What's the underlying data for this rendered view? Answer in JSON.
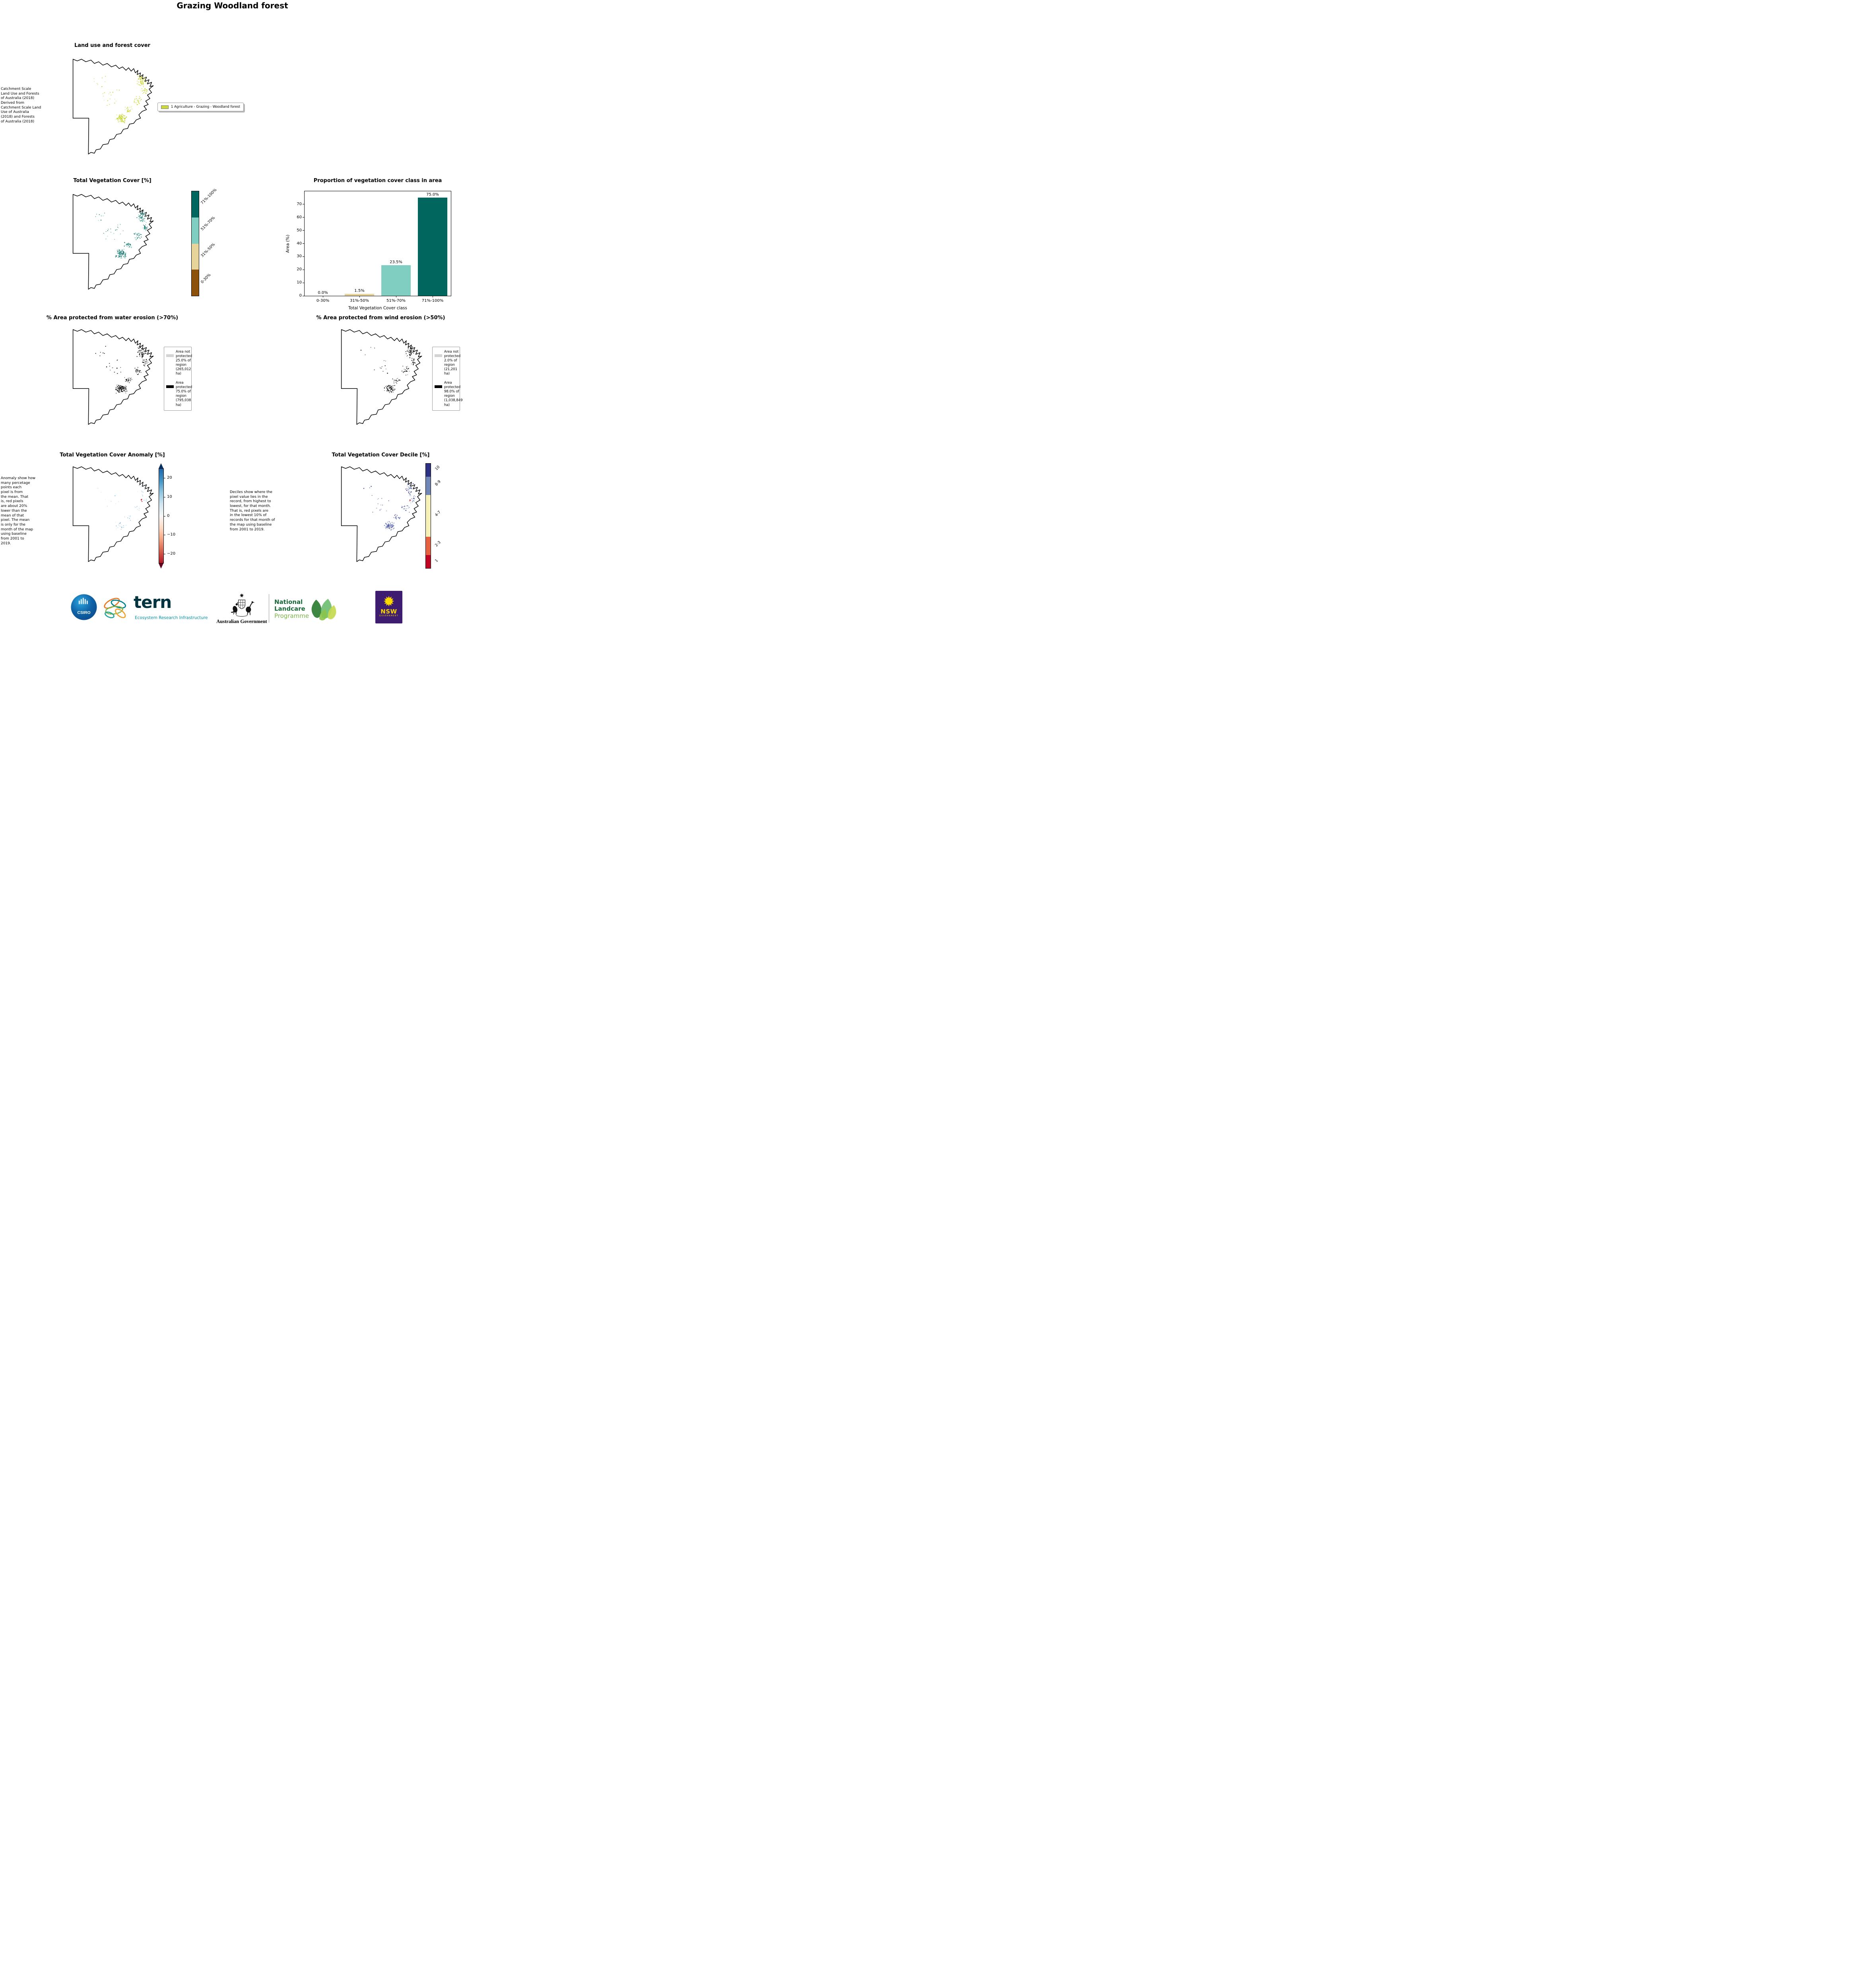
{
  "page": {
    "title": "Grazing Woodland forest"
  },
  "land_use": {
    "title": "Land use and forest cover",
    "note": " Catchment Scale\nLand Use and Forests\nof Australia (2018)\nDerived from\nCatchment Scale Land\nUse of Australia\n(2018) and Forests\nof Australia (2018)",
    "legend_label": "1 Agriculture - Grazing - Woodland forest",
    "legend_color": "#ccd83c"
  },
  "tvc": {
    "title": "Total Vegetation Cover [%]",
    "colorbar": [
      {
        "label": "71%-100%",
        "color": "#01665e"
      },
      {
        "label": "51%-70%",
        "color": "#80cdc1"
      },
      {
        "label": "31%-50%",
        "color": "#e6d49a"
      },
      {
        "label": "0-30%",
        "color": "#8c510a"
      }
    ]
  },
  "chart_data": {
    "type": "bar",
    "title": "Proportion of vegetation cover class in area",
    "xlabel": "Total Vegetation Cover class",
    "ylabel": "Area (%)",
    "categories": [
      "0-30%",
      "31%-50%",
      "51%-70%",
      "71%-100%"
    ],
    "values": [
      0.0,
      1.5,
      23.5,
      75.0
    ],
    "value_labels": [
      "0.0%",
      "1.5%",
      "23.5%",
      "75.0%"
    ],
    "bar_colors": [
      "#8c510a",
      "#e6d49a",
      "#80cdc1",
      "#01665e"
    ],
    "yticks": [
      0,
      10,
      20,
      30,
      40,
      50,
      60,
      70
    ],
    "ylim": [
      0,
      80
    ],
    "grid": false,
    "legend": "none"
  },
  "water": {
    "title": "% Area protected from water erosion (>70%)",
    "legend": [
      {
        "swatch": "#d3d3d3",
        "text": "Area not\nprotected\n25.0% of\nregion\n(265,012\nha)"
      },
      {
        "swatch": "#000000",
        "text": "Area\nprotected\n75.0% of\nregion\n(795,038\nha)"
      }
    ]
  },
  "wind": {
    "title": "% Area protected from wind erosion (>50%)",
    "legend": [
      {
        "swatch": "#d3d3d3",
        "text": "Area not\nprotected\n2.0% of\nregion\n(21,201\nha)"
      },
      {
        "swatch": "#000000",
        "text": "Area\nprotected\n98.0% of\nregion\n(1,038,849\nha)"
      }
    ]
  },
  "anomaly": {
    "title": "Total Vegetation Cover Anomaly [%]",
    "note": "Anomaly show how\nmany percetage\npoints each\npixel is from\nthe mean. That\nis, red pixels\nare about 20%\nlower than the\nmean of that\npixel. The mean\nis only for the\nmonth of the map\nusing baseline\nfrom 2001 to\n2019.",
    "ticks": [
      "20",
      "10",
      "0",
      "−10",
      "−20"
    ],
    "colors_top_to_bottom": [
      "#053061",
      "#2166ac",
      "#4393c3",
      "#92c5de",
      "#d1e5f0",
      "#f7f7f7",
      "#fddbc7",
      "#f4a582",
      "#d6604d",
      "#b2182b",
      "#67001f"
    ]
  },
  "decile": {
    "title": "Total Vegetation Cover Decile [%]",
    "note": "Deciles show where the\npixel value lies in the\nrecord, from highest to\nlowest, for that month.\nThat is, red pixels are\nin the lowest 10% of\nrecords for that month of\nthe map using baseline\nfrom 2001 to 2019.",
    "colorbar": [
      {
        "label": "10",
        "color": "#2d3184",
        "h": 12.5
      },
      {
        "label": "8-9",
        "color": "#6f86b7",
        "h": 17.5
      },
      {
        "label": "4-7",
        "color": "#f6f1b6",
        "h": 40
      },
      {
        "label": "2-3",
        "color": "#e8613f",
        "h": 17.5
      },
      {
        "label": "1",
        "color": "#c10324",
        "h": 12.5
      }
    ]
  },
  "footer": {
    "csiro": "CSIRO",
    "tern": "tern",
    "tern_sub": "Ecosystem Research Infrastructure",
    "aus_gov": "Australian Government",
    "landcare": [
      "National",
      "Landcare",
      "Programme"
    ],
    "nsw": "NSW",
    "nsw_sub": "GOVERNMENT"
  }
}
